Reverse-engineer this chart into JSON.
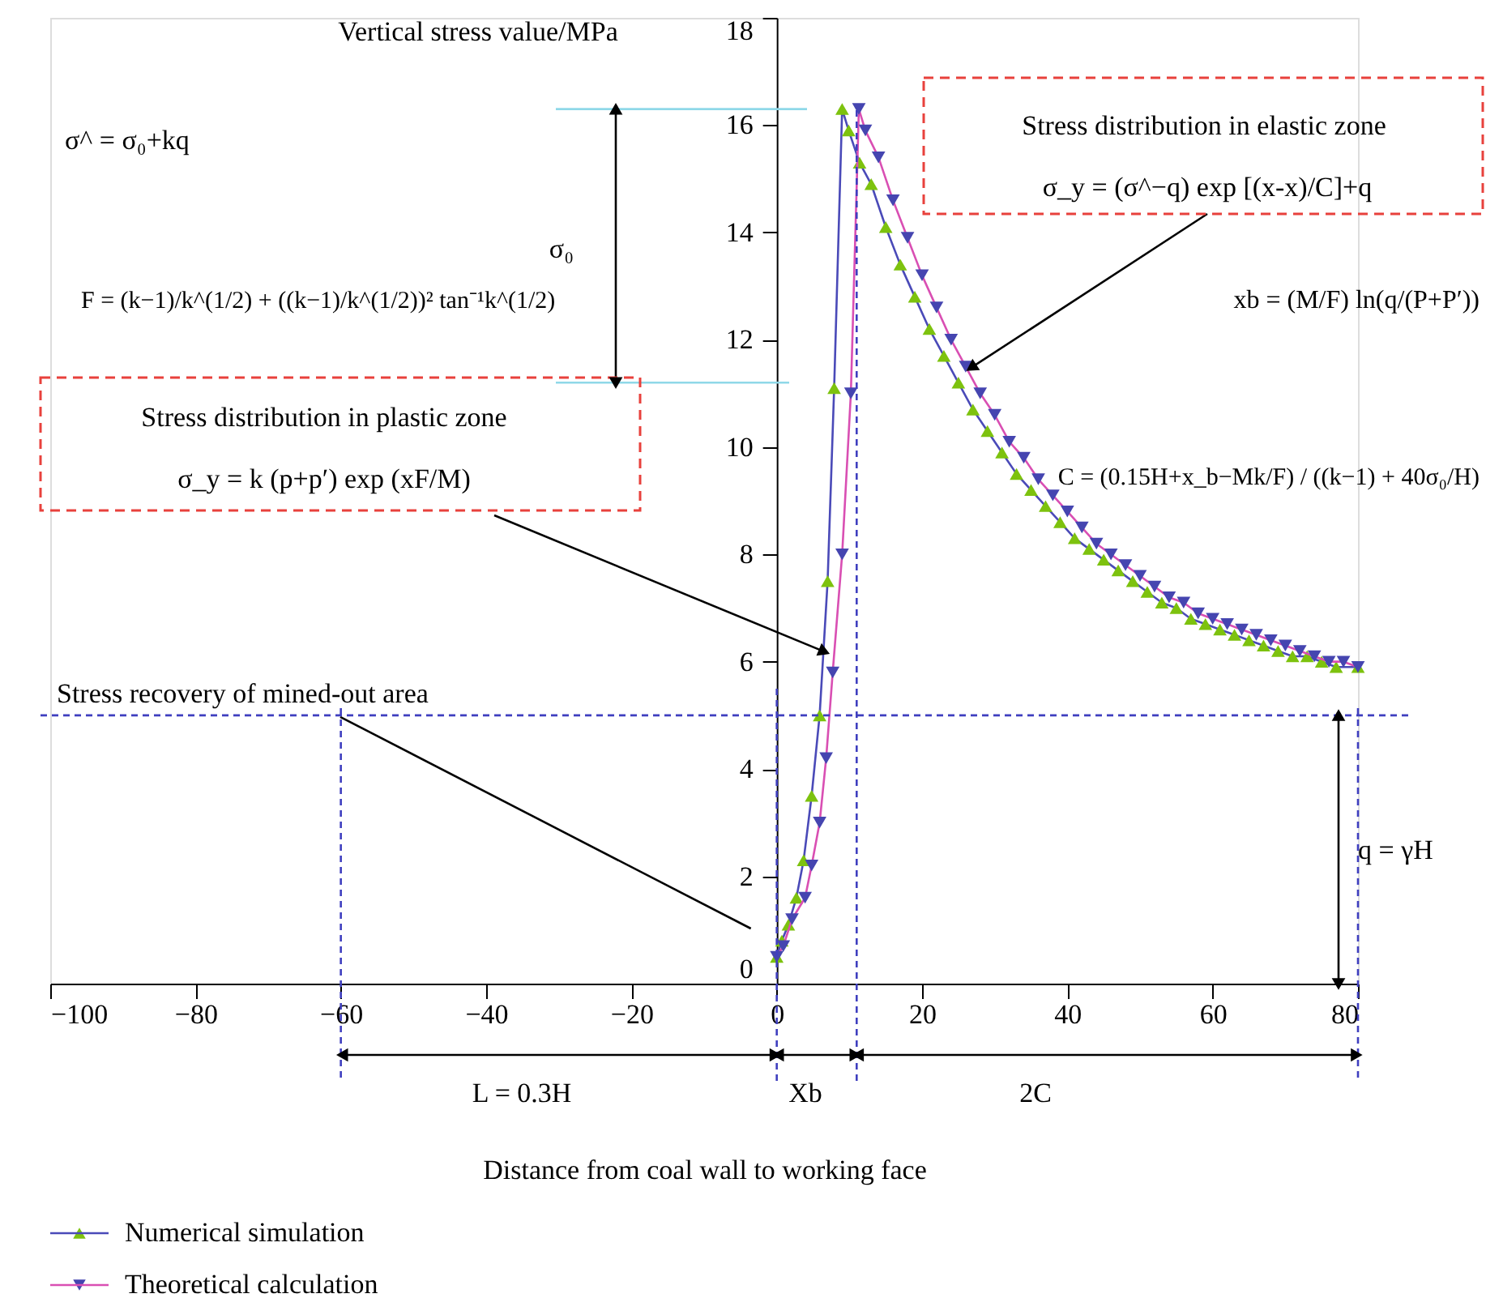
{
  "chart_data": {
    "type": "line",
    "xlabel": "Distance from coal wall to working face",
    "ylabel": "Vertical stress value/MPa",
    "xlim": [
      -100,
      80
    ],
    "xticks": [
      -100,
      -80,
      -60,
      -40,
      -20,
      0,
      20,
      40,
      60,
      80
    ],
    "ylim": [
      0,
      18
    ],
    "yticks": [
      0,
      2,
      4,
      6,
      8,
      10,
      12,
      14,
      16,
      18
    ],
    "grid": false,
    "legend": "bottom left",
    "series": [
      {
        "name": "Numerical simulation",
        "color": "#4a4ab8",
        "x": [
          0,
          0.7,
          1.6,
          2.7,
          3.7,
          4.8,
          5.9,
          7.0,
          7.9,
          9.0,
          9.9,
          11.4,
          13,
          15,
          17,
          19,
          21,
          23,
          25,
          27,
          29,
          31,
          33,
          35,
          37,
          39,
          41,
          43,
          45,
          47,
          49,
          51,
          53,
          55,
          57,
          59,
          61,
          63,
          65,
          67,
          69,
          71,
          73,
          75,
          77,
          80
        ],
        "values": [
          0.5,
          0.8,
          1.1,
          1.6,
          2.3,
          3.5,
          5.0,
          7.5,
          11.1,
          16.3,
          15.9,
          15.3,
          14.9,
          14.1,
          13.4,
          12.8,
          12.2,
          11.7,
          11.2,
          10.7,
          10.3,
          9.9,
          9.5,
          9.2,
          8.9,
          8.6,
          8.3,
          8.1,
          7.9,
          7.7,
          7.5,
          7.3,
          7.1,
          7.0,
          6.8,
          6.7,
          6.6,
          6.5,
          6.4,
          6.3,
          6.2,
          6.1,
          6.1,
          6.0,
          5.9,
          5.9
        ]
      },
      {
        "type": "scatter",
        "marker": "triangle",
        "color": "#7dc20e",
        "x": [
          0,
          0.7,
          1.6,
          2.7,
          3.7,
          4.8,
          5.9,
          7.0,
          7.9,
          9.0,
          9.9,
          11.4,
          13,
          15,
          17,
          19,
          21,
          23,
          25,
          27,
          29,
          31,
          33,
          35,
          37,
          39,
          41,
          43,
          45,
          47,
          49,
          51,
          53,
          55,
          57,
          59,
          61,
          63,
          65,
          67,
          69,
          71,
          73,
          75,
          77,
          80
        ],
        "values": [
          0.5,
          0.8,
          1.1,
          1.6,
          2.3,
          3.5,
          5.0,
          7.5,
          11.1,
          16.3,
          15.9,
          15.3,
          14.9,
          14.1,
          13.4,
          12.8,
          12.2,
          11.7,
          11.2,
          10.7,
          10.3,
          9.9,
          9.5,
          9.2,
          8.9,
          8.6,
          8.3,
          8.1,
          7.9,
          7.7,
          7.5,
          7.3,
          7.1,
          7.0,
          6.8,
          6.7,
          6.6,
          6.5,
          6.4,
          6.3,
          6.2,
          6.1,
          6.1,
          6.0,
          5.9,
          5.9
        ]
      },
      {
        "name": "Theoretical calculation",
        "color": "#d94fb3",
        "x": [
          0,
          0.9,
          2.1,
          3.9,
          4.8,
          5.9,
          6.8,
          7.7,
          9.0,
          10.2,
          11.3,
          12.2,
          14,
          16,
          18,
          20,
          22,
          24,
          26,
          28,
          30,
          32,
          34,
          36,
          38,
          40,
          42,
          44,
          46,
          48,
          50,
          52,
          54,
          56,
          58,
          60,
          62,
          64,
          66,
          68,
          70,
          72,
          74,
          76,
          78,
          80
        ],
        "values": [
          0.5,
          0.7,
          1.2,
          1.6,
          2.2,
          3.0,
          4.2,
          5.8,
          8.0,
          11.0,
          16.3,
          15.9,
          15.4,
          14.6,
          13.9,
          13.2,
          12.6,
          12.0,
          11.5,
          11.0,
          10.6,
          10.1,
          9.8,
          9.4,
          9.1,
          8.8,
          8.5,
          8.2,
          8.0,
          7.8,
          7.6,
          7.4,
          7.2,
          7.1,
          6.9,
          6.8,
          6.7,
          6.6,
          6.5,
          6.4,
          6.3,
          6.2,
          6.1,
          6.0,
          6.0,
          5.9
        ]
      },
      {
        "type": "scatter",
        "marker": "triangle",
        "color": "#4545b0",
        "x": [
          0,
          0.9,
          2.1,
          3.9,
          4.8,
          5.9,
          6.8,
          7.7,
          9.0,
          10.2,
          11.3,
          12.2,
          14,
          16,
          18,
          20,
          22,
          24,
          26,
          28,
          30,
          32,
          34,
          36,
          38,
          40,
          42,
          44,
          46,
          48,
          50,
          52,
          54,
          56,
          58,
          60,
          62,
          64,
          66,
          68,
          70,
          72,
          74,
          76,
          78,
          80
        ],
        "values": [
          0.5,
          0.7,
          1.2,
          1.6,
          2.2,
          3.0,
          4.2,
          5.8,
          8.0,
          11.0,
          16.3,
          15.9,
          15.4,
          14.6,
          13.9,
          13.2,
          12.6,
          12.0,
          11.5,
          11.0,
          10.6,
          10.1,
          9.8,
          9.4,
          9.1,
          8.8,
          8.5,
          8.2,
          8.0,
          7.8,
          7.6,
          7.4,
          7.2,
          7.1,
          6.9,
          6.8,
          6.7,
          6.6,
          6.5,
          6.4,
          6.3,
          6.2,
          6.1,
          6.0,
          6.0,
          5.9
        ]
      }
    ],
    "ref_lines": [
      {
        "axis": "y",
        "value": 5,
        "label": "Stress recovery of mined-out area",
        "color": "#3f3fbf",
        "line_style": "dashed"
      },
      {
        "axis": "y",
        "value": 16.3,
        "color": "#8fd8e8"
      },
      {
        "axis": "y",
        "value": 11.2,
        "color": "#8fd8e8"
      },
      {
        "axis": "x",
        "value": -60,
        "color": "#3f3fbf",
        "line_style": "dashed"
      },
      {
        "axis": "x",
        "value": 0,
        "color": "#3f3fbf",
        "line_style": "dashed"
      },
      {
        "axis": "x",
        "value": 11,
        "color": "#3f3fbf",
        "line_style": "dashed"
      },
      {
        "axis": "x",
        "value": 80,
        "color": "#3f3fbf",
        "line_style": "dashed"
      }
    ],
    "annotations": [
      "σ^ = σ₀+kq",
      "F = (k−1)/k^(1/2) + ((k−1)/k^(1/2))² tan⁻¹k^(1/2)",
      "Stress distribution in elastic zone",
      {
        "text": "σ_y = (σ^−q)  exp  [(x-x)/C]+q",
        "x": 27,
        "y": 11.5
      },
      "xb = (M/F) ln(q/(P+P′))",
      "C = (0.15H+x_b−Mk/F) / ((k−1) + 40σ₀/H)",
      "Stress distribution in plastic zone",
      {
        "text": "σ_y = k (p+p′) exp (xF/M)",
        "x": 6.3,
        "y": 6.2
      },
      "σ₀",
      "q = γH",
      "L = 0.3H",
      "Xb",
      "2C"
    ]
  }
}
